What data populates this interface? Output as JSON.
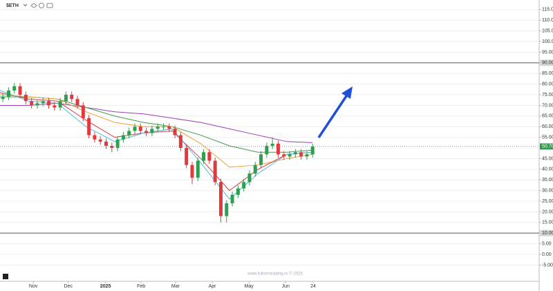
{
  "chart_data": {
    "type": "candlestick",
    "symbol": "$ETH",
    "watermark": "www.fullsmstrading.ru © 2025",
    "xlim": [
      0,
      94
    ],
    "ylim": [
      -12,
      119.5
    ],
    "xticks": [
      {
        "value": 5.8,
        "label": "Nov"
      },
      {
        "value": 11.9,
        "label": "Dec"
      },
      {
        "value": 18.4,
        "label": "2025"
      },
      {
        "value": 24.6,
        "label": "Feb"
      },
      {
        "value": 30.6,
        "label": "Mar"
      },
      {
        "value": 37,
        "label": "Apr"
      },
      {
        "value": 43.4,
        "label": "May"
      },
      {
        "value": 49.8,
        "label": "Jun"
      },
      {
        "value": 54.6,
        "label": "24"
      }
    ],
    "yticks": [
      {
        "value": 115,
        "label": "115.00"
      },
      {
        "value": 110,
        "label": "110.00"
      },
      {
        "value": 105,
        "label": "105.00"
      },
      {
        "value": 100,
        "label": "100.00"
      },
      {
        "value": 95,
        "label": "95.00"
      },
      {
        "value": 90,
        "label": "90.00"
      },
      {
        "value": 85,
        "label": "85.00"
      },
      {
        "value": 80,
        "label": "80.00"
      },
      {
        "value": 75,
        "label": "75.00"
      },
      {
        "value": 70,
        "label": "70.00"
      },
      {
        "value": 65,
        "label": "65.00"
      },
      {
        "value": 60,
        "label": "60.00"
      },
      {
        "value": 55,
        "label": "55.00"
      },
      {
        "value": 45,
        "label": "45.00"
      },
      {
        "value": 40,
        "label": "40.00"
      },
      {
        "value": 35,
        "label": "35.00"
      },
      {
        "value": 30,
        "label": "30.00"
      },
      {
        "value": 25,
        "label": "25.00"
      },
      {
        "value": 20,
        "label": "20.00"
      },
      {
        "value": 15,
        "label": "15.00"
      },
      {
        "value": 10,
        "label": "10.00"
      },
      {
        "value": 5,
        "label": "5.00"
      },
      {
        "value": 0,
        "label": "0.00"
      },
      {
        "value": -5,
        "label": "-5.00"
      }
    ],
    "grid": true,
    "levels": [
      90,
      10
    ],
    "last_price": {
      "value": 50.7,
      "label": "50.70"
    },
    "up_color": "#2e9e4f",
    "down_color": "#e0393e",
    "x": [
      0.5,
      1.5,
      2.5,
      3.5,
      4.5,
      5.5,
      6.5,
      7.5,
      8.5,
      9.5,
      10.5,
      11.5,
      12.5,
      13.5,
      14.5,
      15.5,
      16.5,
      17.5,
      18.5,
      19.5,
      20.5,
      21.5,
      22.5,
      23.5,
      24.5,
      25.5,
      26.5,
      27.5,
      28.5,
      29.5,
      30.5,
      31.5,
      32.5,
      33.5,
      34.5,
      35.5,
      36.5,
      37.5,
      38.5,
      39.5,
      40.5,
      41.5,
      42.5,
      43.5,
      44.5,
      45.5,
      46.5,
      47.5,
      48.5,
      49.5,
      50.5,
      51.5,
      52.5,
      53.5,
      54.5
    ],
    "open": [
      73,
      74,
      77,
      79,
      75,
      72,
      70,
      71,
      72,
      70,
      69,
      72,
      75,
      73,
      70,
      64,
      56,
      54,
      53,
      51,
      50,
      54,
      56,
      58,
      60,
      58,
      57,
      59,
      60,
      60,
      59,
      56,
      50,
      42,
      36,
      44,
      48,
      44,
      34,
      18,
      24,
      28,
      31,
      34,
      38,
      42,
      47,
      51,
      52,
      47,
      46,
      47,
      48,
      46,
      47
    ],
    "high": [
      75.5,
      78.5,
      80.5,
      80.5,
      76.5,
      73.5,
      72.5,
      73.5,
      73.5,
      71.5,
      73.5,
      76.5,
      76.5,
      74.5,
      71.5,
      65.5,
      57.5,
      55.5,
      54.5,
      52.5,
      55.5,
      57.5,
      59.5,
      61.5,
      61.5,
      59.5,
      60.5,
      61.5,
      61.5,
      61.5,
      60.5,
      57.5,
      51.5,
      43.5,
      45.5,
      49.5,
      49.5,
      45.5,
      35.5,
      25.5,
      29.5,
      32.5,
      35.5,
      39.5,
      43.5,
      48.5,
      52.5,
      55,
      53.5,
      48.5,
      48.5,
      49.5,
      49.5,
      48.5,
      52
    ],
    "low": [
      71.5,
      72.5,
      75.5,
      73.5,
      70.5,
      68.5,
      68.5,
      69.5,
      68.5,
      67.5,
      67.5,
      70.5,
      71.5,
      68.5,
      62.5,
      54.5,
      52.5,
      51.5,
      49.5,
      48,
      48.5,
      52.5,
      54.5,
      56.5,
      56.5,
      55.5,
      55.5,
      57.5,
      58.5,
      57.5,
      54.5,
      48.5,
      40.5,
      33,
      34.5,
      42.5,
      42.5,
      32.5,
      15,
      15,
      22.5,
      26.5,
      29.5,
      32.5,
      36.5,
      40.5,
      45.5,
      49.5,
      45.5,
      44.5,
      44.5,
      45.5,
      44.5,
      44.5,
      45.5
    ],
    "close": [
      74,
      77,
      79,
      75,
      72,
      70,
      71,
      72,
      70,
      69,
      72,
      75,
      73,
      70,
      64,
      56,
      54,
      53,
      51,
      50,
      54,
      56,
      58,
      60,
      58,
      57,
      59,
      60,
      60,
      59,
      56,
      50,
      42,
      36,
      44,
      48,
      44,
      34,
      18,
      24,
      28,
      31,
      34,
      38,
      42,
      47,
      51,
      52,
      47,
      46,
      47,
      48,
      46,
      47,
      50.7
    ],
    "overlay_x": [
      0,
      5,
      10,
      15,
      20,
      25,
      30,
      35,
      40,
      45,
      50,
      54.5
    ],
    "overlays": [
      {
        "color": "#9b3fb5",
        "values": [
          70,
          70,
          71,
          69,
          67,
          66,
          64,
          62,
          59,
          56,
          53,
          52.5
        ]
      },
      {
        "color": "#3f9a4a",
        "values": [
          74,
          74,
          73,
          69,
          65,
          62,
          60,
          56,
          51,
          48,
          48,
          49
        ]
      },
      {
        "color": "#f0a030",
        "values": [
          75,
          74,
          73,
          67,
          62,
          60,
          60,
          52,
          41,
          42,
          45,
          47
        ]
      },
      {
        "color": "#e0393e",
        "values": [
          76,
          73,
          72,
          63,
          55,
          57,
          58,
          45,
          30,
          40,
          47,
          48
        ]
      },
      {
        "color": "#4fb8e0",
        "values": [
          77,
          72,
          71,
          60,
          53,
          57,
          59,
          43,
          26,
          38,
          47,
          48
        ]
      }
    ]
  }
}
